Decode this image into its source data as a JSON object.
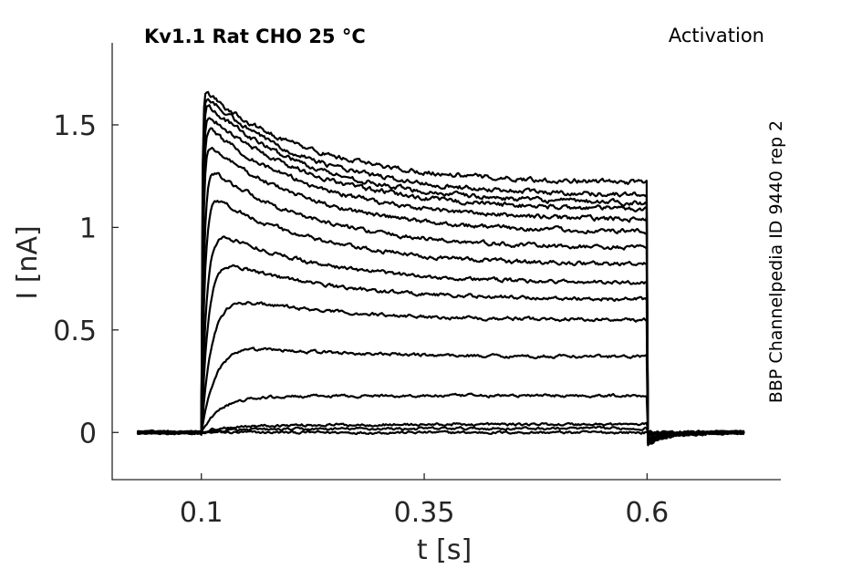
{
  "chart_data": {
    "type": "line",
    "title": "Kv1.1  Rat  CHO  25 °C",
    "protocol": "Activation",
    "source": "BBP Channelpedia ID 9440 rep 2",
    "xlabel": "t [s]",
    "ylabel": "I [nA]",
    "xlim": [
      0.0,
      0.75
    ],
    "ylim": [
      -0.23,
      1.9
    ],
    "x_ticks": [
      0.1,
      0.35,
      0.6
    ],
    "x_tick_labels": [
      "0.1",
      "0.35",
      "0.6"
    ],
    "y_ticks": [
      0,
      0.5,
      1,
      1.5
    ],
    "y_tick_labels": [
      "0",
      "0.5",
      "1",
      "1.5"
    ],
    "grid": false,
    "legend": "none",
    "color": "#000000",
    "step_on": 0.1,
    "step_off": 0.6,
    "record_start": 0.028,
    "record_end": 0.71,
    "series": [
      {
        "rise_tau": 0.02,
        "peak": 0.0,
        "end": 0.0
      },
      {
        "rise_tau": 0.02,
        "peak": 0.01,
        "end": 0.02
      },
      {
        "rise_tau": 0.02,
        "peak": 0.03,
        "end": 0.04
      },
      {
        "rise_tau": 0.02,
        "peak": 0.17,
        "end": 0.18
      },
      {
        "rise_tau": 0.016,
        "peak": 0.44,
        "end": 0.37
      },
      {
        "rise_tau": 0.012,
        "peak": 0.69,
        "end": 0.55
      },
      {
        "rise_tau": 0.008,
        "peak": 0.88,
        "end": 0.65
      },
      {
        "rise_tau": 0.006,
        "peak": 1.02,
        "end": 0.73
      },
      {
        "rise_tau": 0.004,
        "peak": 1.19,
        "end": 0.82
      },
      {
        "rise_tau": 0.003,
        "peak": 1.32,
        "end": 0.9
      },
      {
        "rise_tau": 0.002,
        "peak": 1.43,
        "end": 0.98
      },
      {
        "rise_tau": 0.0018,
        "peak": 1.52,
        "end": 1.04
      },
      {
        "rise_tau": 0.0016,
        "peak": 1.58,
        "end": 1.09
      },
      {
        "rise_tau": 0.0014,
        "peak": 1.63,
        "end": 1.12
      },
      {
        "rise_tau": 0.0012,
        "peak": 1.66,
        "end": 1.16
      },
      {
        "rise_tau": 0.001,
        "peak": 1.68,
        "end": 1.22
      }
    ]
  }
}
